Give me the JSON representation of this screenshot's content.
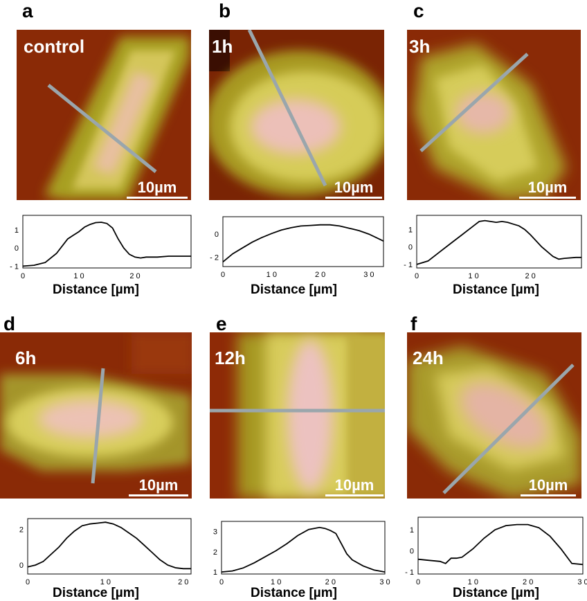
{
  "figure": {
    "scale_text": "10µm",
    "x_title": "Distance [µm]",
    "panels": [
      {
        "letter": "a",
        "label": "control",
        "chart_data": {
          "type": "line",
          "xlabel": "Distance [µm]",
          "xlim": [
            0,
            30
          ],
          "ylim": [
            -1.1,
            1.8
          ],
          "xticks": [
            "0",
            "1 0",
            "2 0"
          ],
          "yticks": [
            "1",
            "0",
            "- 1"
          ],
          "x": [
            0,
            2,
            4,
            6,
            8,
            9,
            10,
            11,
            12,
            13,
            14,
            15,
            16,
            17,
            18,
            19,
            20,
            21,
            22,
            24,
            26,
            28,
            30
          ],
          "y": [
            -1.0,
            -0.95,
            -0.8,
            -0.3,
            0.5,
            0.7,
            0.9,
            1.15,
            1.3,
            1.4,
            1.42,
            1.35,
            1.1,
            0.5,
            0.0,
            -0.35,
            -0.5,
            -0.55,
            -0.5,
            -0.5,
            -0.45,
            -0.45,
            -0.45
          ]
        }
      },
      {
        "letter": "b",
        "label": "1h",
        "chart_data": {
          "type": "line",
          "xlabel": "Distance [µm]",
          "xlim": [
            0,
            33
          ],
          "ylim": [
            -2.8,
            1.5
          ],
          "xticks": [
            "0",
            "1 0",
            "2 0",
            "3 0"
          ],
          "yticks": [
            "0",
            "- 2"
          ],
          "x": [
            0,
            2,
            4,
            6,
            8,
            10,
            12,
            14,
            16,
            18,
            20,
            22,
            24,
            26,
            28,
            30,
            32,
            33
          ],
          "y": [
            -2.4,
            -1.7,
            -1.2,
            -0.7,
            -0.3,
            0.05,
            0.35,
            0.55,
            0.7,
            0.75,
            0.8,
            0.8,
            0.7,
            0.5,
            0.3,
            0.0,
            -0.4,
            -0.6
          ]
        }
      },
      {
        "letter": "c",
        "label": "3h",
        "chart_data": {
          "type": "line",
          "xlabel": "Distance [µm]",
          "xlim": [
            0,
            29
          ],
          "ylim": [
            -1.2,
            1.8
          ],
          "xticks": [
            "0",
            "1 0",
            "2 0"
          ],
          "yticks": [
            "1",
            "0",
            "- 1"
          ],
          "x": [
            0,
            2,
            4,
            6,
            8,
            10,
            11,
            12,
            13,
            14,
            15,
            16,
            17,
            18,
            19,
            20,
            22,
            24,
            25,
            26,
            28,
            29
          ],
          "y": [
            -1.0,
            -0.8,
            -0.3,
            0.2,
            0.7,
            1.2,
            1.45,
            1.5,
            1.45,
            1.4,
            1.45,
            1.4,
            1.3,
            1.2,
            1.0,
            0.7,
            0.0,
            -0.55,
            -0.7,
            -0.65,
            -0.6,
            -0.6
          ]
        }
      },
      {
        "letter": "d",
        "label": "6h",
        "chart_data": {
          "type": "line",
          "xlabel": "Distance [µm]",
          "xlim": [
            0,
            21
          ],
          "ylim": [
            -0.5,
            2.6
          ],
          "xticks": [
            "0",
            "1 0",
            "2 0"
          ],
          "yticks": [
            "2",
            "0"
          ],
          "x": [
            0,
            1,
            2,
            3,
            4,
            5,
            6,
            7,
            8,
            9,
            10,
            11,
            12,
            13,
            14,
            15,
            16,
            17,
            18,
            19,
            20,
            21
          ],
          "y": [
            -0.1,
            0.0,
            0.2,
            0.6,
            1.0,
            1.5,
            1.9,
            2.2,
            2.3,
            2.35,
            2.4,
            2.3,
            2.1,
            1.8,
            1.5,
            1.1,
            0.7,
            0.3,
            0.0,
            -0.15,
            -0.2,
            -0.2
          ]
        }
      },
      {
        "letter": "e",
        "label": "12h",
        "chart_data": {
          "type": "line",
          "xlabel": "Distance [µm]",
          "xlim": [
            0,
            30
          ],
          "ylim": [
            0.9,
            3.5
          ],
          "xticks": [
            "0",
            "1 0",
            "2 0",
            "3 0"
          ],
          "yticks": [
            "3",
            "2",
            "1"
          ],
          "x": [
            0,
            2,
            4,
            6,
            8,
            10,
            12,
            14,
            16,
            18,
            19,
            20,
            21,
            22,
            23,
            24,
            26,
            28,
            30
          ],
          "y": [
            1.0,
            1.05,
            1.2,
            1.45,
            1.75,
            2.05,
            2.4,
            2.8,
            3.1,
            3.2,
            3.15,
            3.05,
            2.9,
            2.4,
            1.9,
            1.6,
            1.3,
            1.1,
            1.0
          ]
        }
      },
      {
        "letter": "f",
        "label": "24h",
        "chart_data": {
          "type": "line",
          "xlabel": "Distance [µm]",
          "xlim": [
            0,
            30
          ],
          "ylim": [
            -1.1,
            1.6
          ],
          "xticks": [
            "0",
            "1 0",
            "2 0",
            "3 0"
          ],
          "yticks": [
            "1",
            "0",
            "- 1"
          ],
          "x": [
            0,
            2,
            4,
            5,
            6,
            7,
            8,
            10,
            12,
            14,
            16,
            18,
            20,
            22,
            24,
            26,
            28,
            30
          ],
          "y": [
            -0.4,
            -0.45,
            -0.5,
            -0.6,
            -0.35,
            -0.35,
            -0.3,
            0.1,
            0.6,
            1.0,
            1.2,
            1.25,
            1.25,
            1.1,
            0.7,
            0.1,
            -0.6,
            -0.65
          ]
        }
      }
    ]
  }
}
